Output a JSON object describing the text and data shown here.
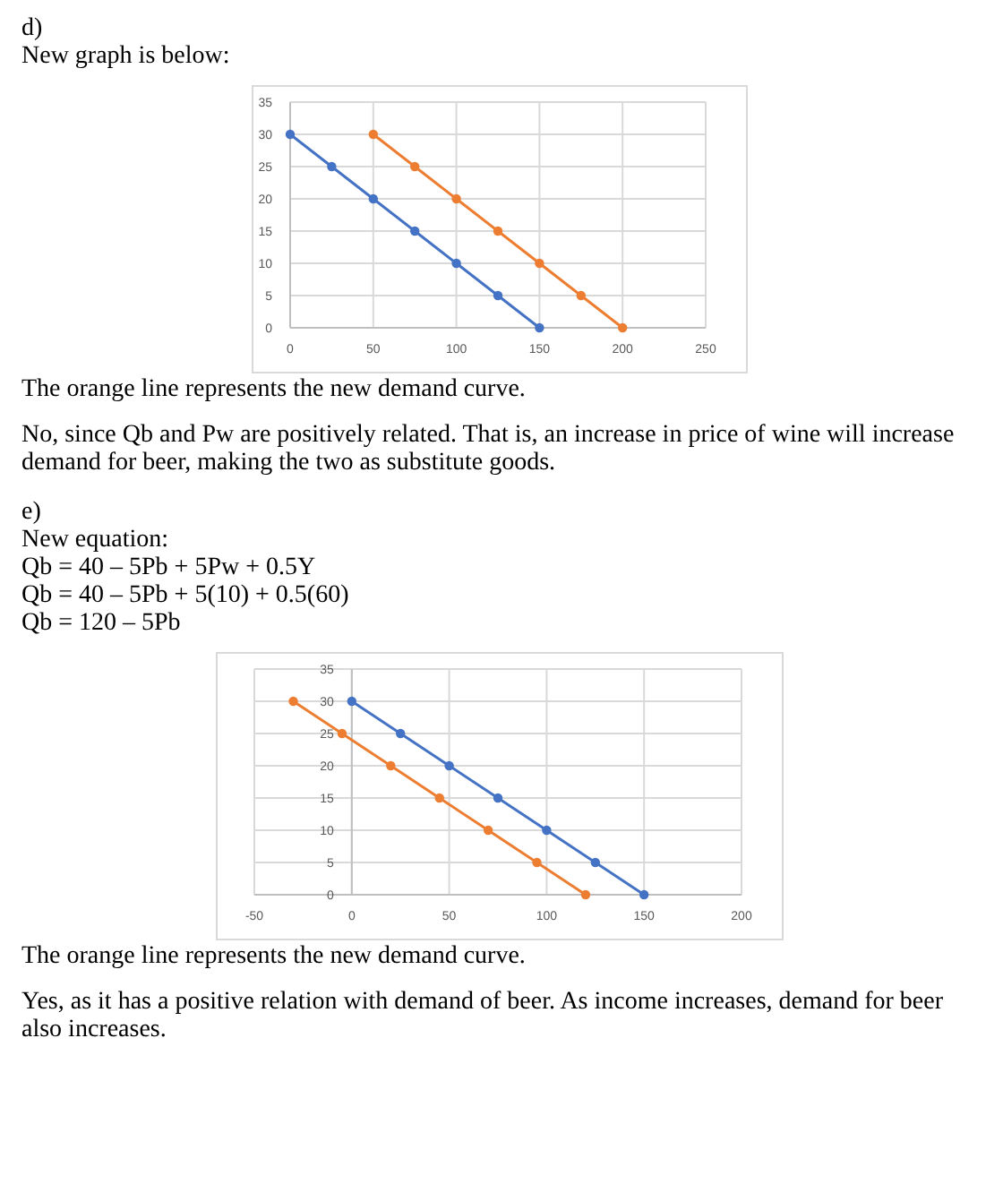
{
  "chart_data": [
    {
      "type": "line",
      "subtitle": "d)\nNew graph is below:",
      "marker": "circle",
      "grid": true,
      "xlim": [
        0,
        250
      ],
      "xticks": [
        0,
        50,
        100,
        150,
        200,
        250
      ],
      "ylim": [
        0,
        35
      ],
      "yticks": [
        0,
        5,
        10,
        15,
        20,
        25,
        30,
        35
      ],
      "series": [
        {
          "color": "#4472c4",
          "x": [
            0,
            25,
            50,
            75,
            100,
            125,
            150
          ],
          "values": [
            30,
            25,
            20,
            15,
            10,
            5,
            0
          ]
        },
        {
          "color": "#ed7d31",
          "x": [
            50,
            75,
            100,
            125,
            150,
            175,
            200
          ],
          "values": [
            30,
            25,
            20,
            15,
            10,
            5,
            0
          ]
        }
      ],
      "annotations": [
        "The orange line represents the new demand curve.",
        "No, since Qb and Pw are positively related. That is, an increase in price of wine will increase demand for beer, making the two as substitute goods."
      ]
    },
    {
      "type": "line",
      "subtitle": "e)\nNew equation:\nQb = 40 – 5Pb + 5Pw + 0.5Y\nQb = 40 – 5Pb + 5(10) + 0.5(60)\nQb = 120 – 5Pb",
      "marker": "circle",
      "grid": true,
      "xlim": [
        -50,
        200
      ],
      "xticks": [
        -50,
        0,
        50,
        100,
        150,
        200
      ],
      "ylim": [
        0,
        35
      ],
      "yticks": [
        0,
        5,
        10,
        15,
        20,
        25,
        30,
        35
      ],
      "series": [
        {
          "color": "#4472c4",
          "x": [
            0,
            25,
            50,
            75,
            100,
            125,
            150
          ],
          "values": [
            30,
            25,
            20,
            15,
            10,
            5,
            0
          ]
        },
        {
          "color": "#ed7d31",
          "x": [
            -30,
            -5,
            20,
            45,
            70,
            95,
            120
          ],
          "values": [
            30,
            25,
            20,
            15,
            10,
            5,
            0
          ]
        }
      ],
      "annotations": [
        "The orange line represents the new demand curve.",
        "Yes, as it has a positive relation with demand of beer. As income increases, demand for beer also increases."
      ]
    }
  ]
}
